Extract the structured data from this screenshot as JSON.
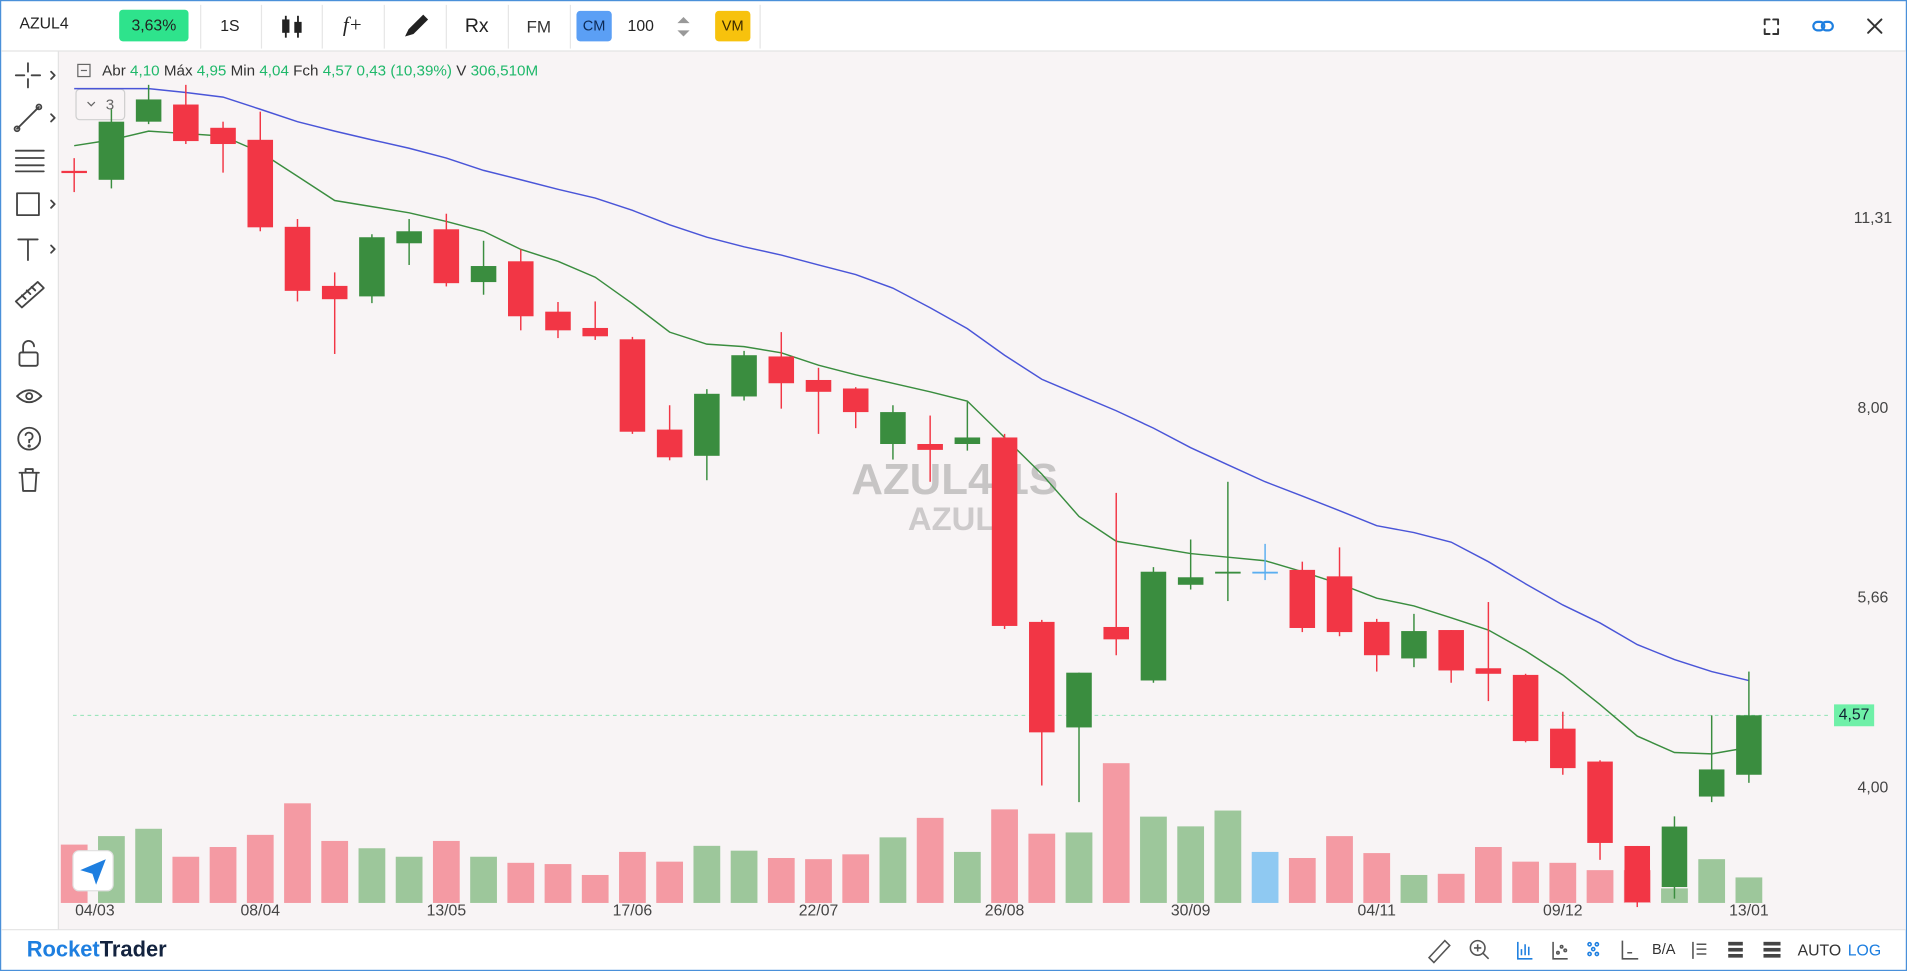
{
  "toolbar": {
    "symbol": "AZUL4",
    "change": "3,63%",
    "interval": "1S",
    "studies": "f+",
    "replay": "Rx",
    "fm": "FM",
    "cm": "CM",
    "quantity": "100",
    "vm": "VM"
  },
  "legend": {
    "ohlc": [
      {
        "label": "Abr",
        "value": "4,10"
      },
      {
        "label": "Máx",
        "value": "4,95"
      },
      {
        "label": "Min",
        "value": "4,04"
      },
      {
        "label": "Fch",
        "value": "4,57"
      }
    ],
    "change": "0,43 (10,39%)",
    "volume_label": "V",
    "volume": "306,510M",
    "indicator_count": "3"
  },
  "footer": {
    "brand_first": "Rocket",
    "brand_second": "Trader",
    "ba": "B/A",
    "auto": "AUTO",
    "log": "LOG"
  },
  "chart_data": {
    "type": "candlestick",
    "watermark": {
      "title": "AZUL4 1S",
      "subtitle": "AZUL4"
    },
    "categories": [
      "04/03",
      null,
      null,
      null,
      null,
      "08/04",
      null,
      null,
      null,
      null,
      "13/05",
      null,
      null,
      null,
      null,
      "17/06",
      null,
      null,
      null,
      null,
      "22/07",
      null,
      null,
      null,
      null,
      "26/08",
      null,
      null,
      null,
      null,
      "30/09",
      null,
      null,
      null,
      null,
      "04/11",
      null,
      null,
      null,
      null,
      "09/12",
      null,
      null,
      null,
      null,
      "13/01"
    ],
    "open": [
      12.35,
      12.15,
      13.51,
      13.94,
      13.36,
      13.07,
      11.15,
      10.01,
      9.82,
      10.82,
      11.1,
      10.08,
      10.47,
      9.55,
      9.27,
      9.08,
      7.7,
      7.34,
      8.18,
      8.8,
      8.43,
      8.3,
      7.5,
      7.5,
      7.5,
      7.59,
      5.42,
      4.47,
      5.37,
      4.87,
      5.8,
      5.92,
      5.94,
      5.96,
      5.89,
      5.42,
      5.07,
      5.34,
      4.98,
      4.92,
      4.46,
      4.2,
      3.6,
      3.34,
      3.94,
      4.1
    ],
    "high": [
      12.64,
      13.82,
      14.45,
      14.45,
      13.51,
      13.76,
      11.31,
      10.26,
      11.0,
      11.31,
      11.42,
      10.87,
      10.7,
      9.72,
      9.73,
      9.12,
      8.05,
      8.29,
      8.89,
      9.2,
      8.62,
      8.32,
      8.05,
      7.9,
      8.1,
      7.64,
      5.44,
      4.94,
      6.86,
      5.99,
      6.3,
      7.0,
      6.25,
      6.05,
      6.21,
      5.45,
      5.5,
      5.34,
      5.62,
      4.93,
      4.6,
      4.21,
      3.6,
      3.8,
      4.57,
      4.95
    ],
    "low": [
      11.88,
      11.96,
      13.45,
      12.97,
      12.31,
      11.06,
      9.73,
      8.84,
      9.7,
      10.4,
      10.0,
      9.85,
      9.23,
      9.1,
      9.07,
      7.64,
      7.28,
      7.02,
      8.12,
      8.0,
      7.64,
      7.72,
      7.29,
      7.0,
      7.41,
      5.35,
      4.02,
      3.9,
      5.1,
      4.85,
      5.75,
      5.63,
      5.85,
      5.32,
      5.28,
      4.95,
      4.99,
      4.85,
      4.69,
      4.35,
      4.1,
      3.51,
      3.22,
      3.27,
      3.9,
      4.04
    ],
    "close": [
      12.3,
      13.51,
      14.07,
      13.04,
      12.97,
      11.14,
      9.92,
      9.77,
      10.94,
      11.06,
      10.06,
      10.38,
      9.47,
      9.23,
      9.13,
      7.67,
      7.32,
      8.22,
      8.82,
      8.38,
      8.25,
      7.95,
      7.95,
      7.42,
      7.59,
      5.38,
      4.43,
      4.94,
      5.25,
      5.94,
      5.88,
      5.94,
      5.94,
      5.36,
      5.32,
      5.1,
      5.33,
      4.96,
      4.93,
      4.36,
      4.15,
      3.62,
      3.25,
      3.73,
      4.14,
      4.57
    ],
    "volume": [
      701,
      803,
      891,
      555,
      672,
      818,
      1197,
      745,
      657,
      555,
      745,
      555,
      482,
      467,
      336,
      613,
      496,
      686,
      628,
      540,
      526,
      584,
      788,
      1022,
      613,
      1124,
      832,
      847,
      1679,
      1037,
      920,
      1110,
      613,
      540,
      803,
      599,
      336,
      350,
      672,
      496,
      482,
      394,
      394,
      175,
      526,
      306.51
    ],
    "up_color": "#3a8d3f",
    "down_color": "#f23645",
    "flat_color": "#5aaef0",
    "volume_up_color": "#9dc79b",
    "volume_down_color": "#f49aa3",
    "volume_flat_color": "#8fc9f2",
    "moving_averages": [
      {
        "color": "#3a8d3f",
        "values": [
          12.93,
          13.07,
          13.28,
          13.22,
          13.16,
          12.78,
          12.23,
          11.7,
          11.57,
          11.44,
          11.26,
          11.06,
          10.7,
          10.47,
          10.17,
          9.69,
          9.2,
          9.0,
          8.96,
          8.86,
          8.66,
          8.51,
          8.38,
          8.25,
          8.11,
          7.59,
          7.1,
          6.57,
          6.28,
          6.21,
          6.14,
          6.1,
          6.06,
          5.94,
          5.81,
          5.66,
          5.58,
          5.46,
          5.34,
          5.14,
          4.92,
          4.66,
          4.4,
          4.27,
          4.26,
          4.31
        ]
      },
      {
        "color": "#4a55d8",
        "values": [
          14.35,
          14.35,
          14.35,
          14.25,
          14.13,
          13.82,
          13.51,
          13.28,
          13.07,
          12.87,
          12.64,
          12.36,
          12.15,
          11.94,
          11.75,
          11.49,
          11.19,
          10.94,
          10.75,
          10.59,
          10.4,
          10.22,
          9.97,
          9.62,
          9.26,
          8.82,
          8.44,
          8.2,
          7.97,
          7.72,
          7.45,
          7.22,
          7.0,
          6.82,
          6.64,
          6.46,
          6.38,
          6.27,
          6.05,
          5.81,
          5.59,
          5.41,
          5.2,
          5.06,
          4.95,
          4.87
        ]
      }
    ],
    "ylim": [
      3.23,
      15.37
    ],
    "yticks": [
      {
        "value": 4.0,
        "label": "4,00"
      },
      {
        "value": 5.66,
        "label": "5,66"
      },
      {
        "value": 8.0,
        "label": "8,00"
      },
      {
        "value": 11.31,
        "label": "11,31"
      }
    ],
    "log_scale": true,
    "grid": false,
    "last_price": {
      "value": 4.57,
      "label": "4,57"
    },
    "last_price_color": "#6ff0a8"
  }
}
